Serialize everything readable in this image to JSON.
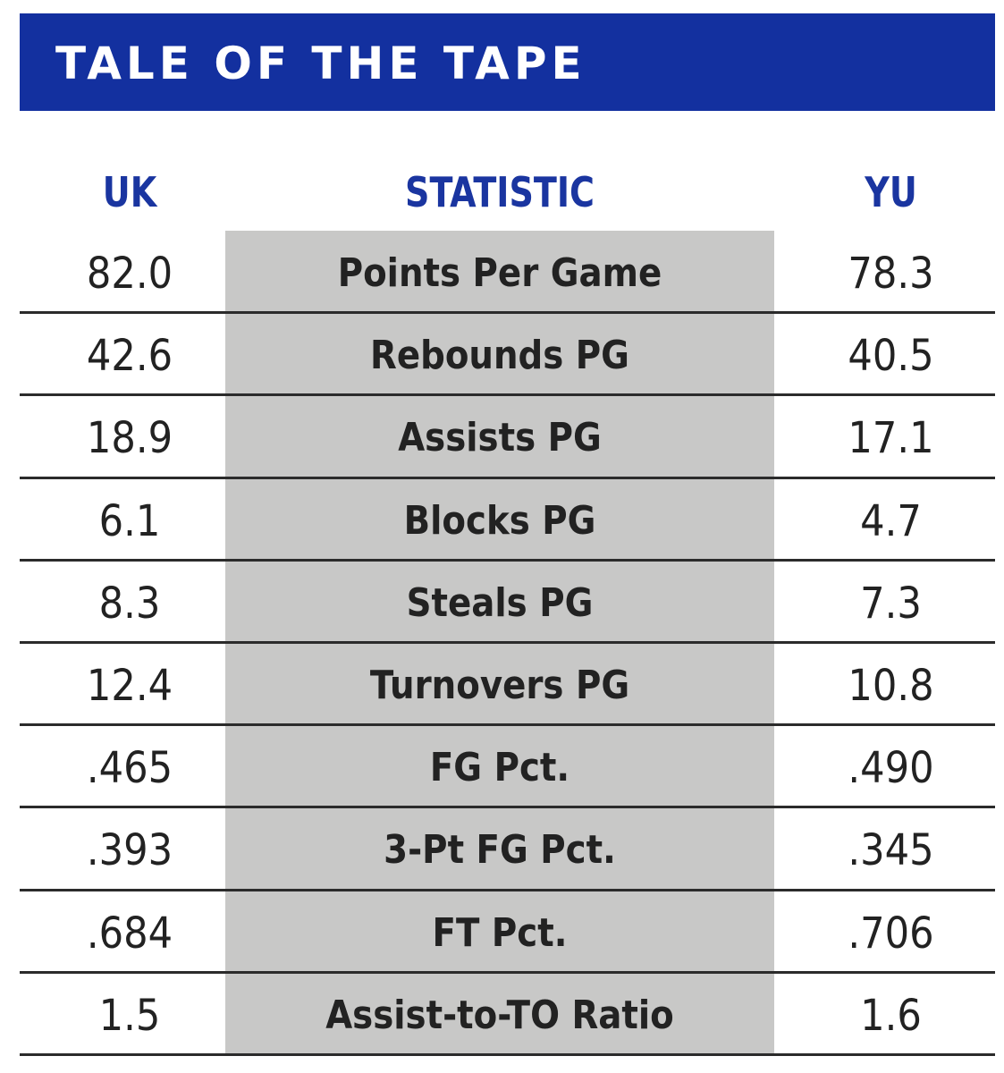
{
  "header": {
    "title": "TALE OF THE TAPE"
  },
  "table": {
    "columns": [
      "UK",
      "STATISTIC",
      "YU"
    ],
    "rows": [
      [
        "82.0",
        "Points Per Game",
        "78.3"
      ],
      [
        "42.6",
        "Rebounds PG",
        "40.5"
      ],
      [
        "18.9",
        "Assists PG",
        "17.1"
      ],
      [
        "6.1",
        "Blocks PG",
        "4.7"
      ],
      [
        "8.3",
        "Steals PG",
        "7.3"
      ],
      [
        "12.4",
        "Turnovers PG",
        "10.8"
      ],
      [
        ".465",
        "FG Pct.",
        ".490"
      ],
      [
        ".393",
        "3-Pt FG Pct.",
        ".345"
      ],
      [
        ".684",
        "FT Pct.",
        ".706"
      ],
      [
        "1.5",
        "Assist-to-TO Ratio",
        "1.6"
      ]
    ]
  }
}
